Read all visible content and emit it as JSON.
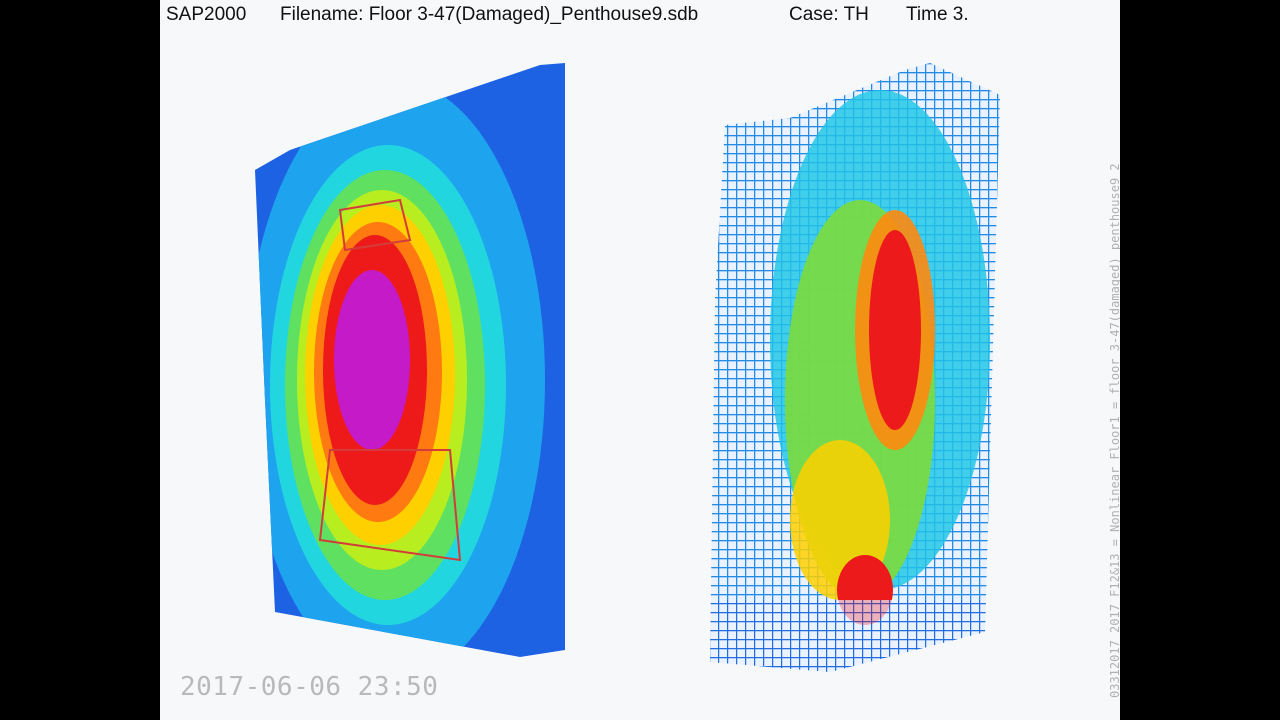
{
  "header": {
    "app": "SAP2000",
    "filename": "Filename: Floor 3-47(Damaged)_Penthouse9.sdb",
    "case": "Case: TH",
    "time": "Time 3."
  },
  "timestamp": "2017-06-06 23:50",
  "side_label": "03312017_2017_F12&13 = Nonlinear Floor1 = floor 3-47(damaged)_penthouse9_2"
}
